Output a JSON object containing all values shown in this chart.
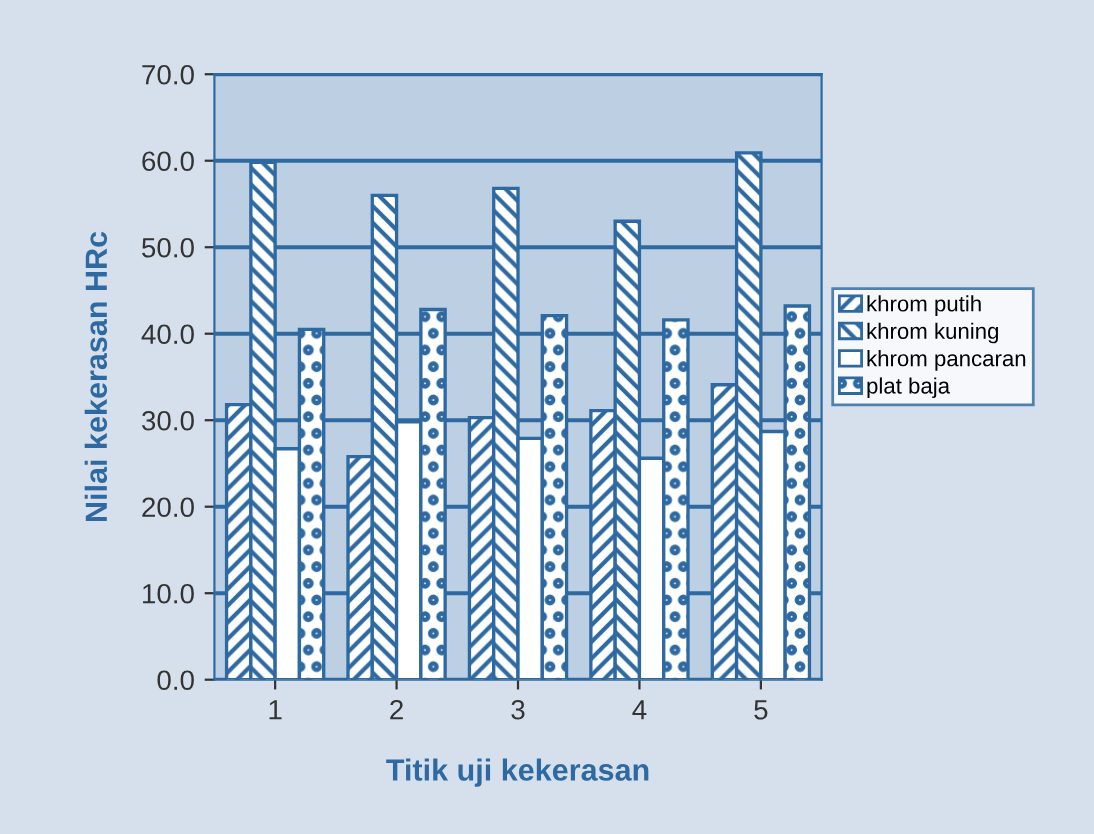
{
  "chart_data": {
    "type": "bar",
    "xlabel": "Titik uji kekerasan",
    "ylabel": "Nilai kekerasan HRc",
    "categories": [
      "1",
      "2",
      "3",
      "4",
      "5"
    ],
    "series": [
      {
        "name": "khrom putih",
        "color": "#2e6aa1",
        "values": [
          31.8,
          25.8,
          30.3,
          31.1,
          34.1
        ]
      },
      {
        "name": "khrom kuning",
        "color": "#2e6aa1",
        "values": [
          59.8,
          56.0,
          56.8,
          53.0,
          60.9
        ]
      },
      {
        "name": "khrom pancaran",
        "color": "#ffffff",
        "values": [
          26.7,
          29.8,
          27.9,
          25.6,
          28.7
        ]
      },
      {
        "name": "plat baja",
        "color": "#2e6aa1",
        "values": [
          40.5,
          42.8,
          42.1,
          41.6,
          43.2
        ]
      }
    ],
    "ylim": [
      0,
      70
    ],
    "yticks": [
      {
        "value": 0,
        "label": "0.0"
      },
      {
        "value": 10,
        "label": "10.0"
      },
      {
        "value": 20,
        "label": "20.0"
      },
      {
        "value": 30,
        "label": "30.0"
      },
      {
        "value": 40,
        "label": "40.0"
      },
      {
        "value": 50,
        "label": "50.0"
      },
      {
        "value": 60,
        "label": "60.0"
      },
      {
        "value": 70,
        "label": "70.0"
      }
    ],
    "grid": "y",
    "legend": "right"
  }
}
